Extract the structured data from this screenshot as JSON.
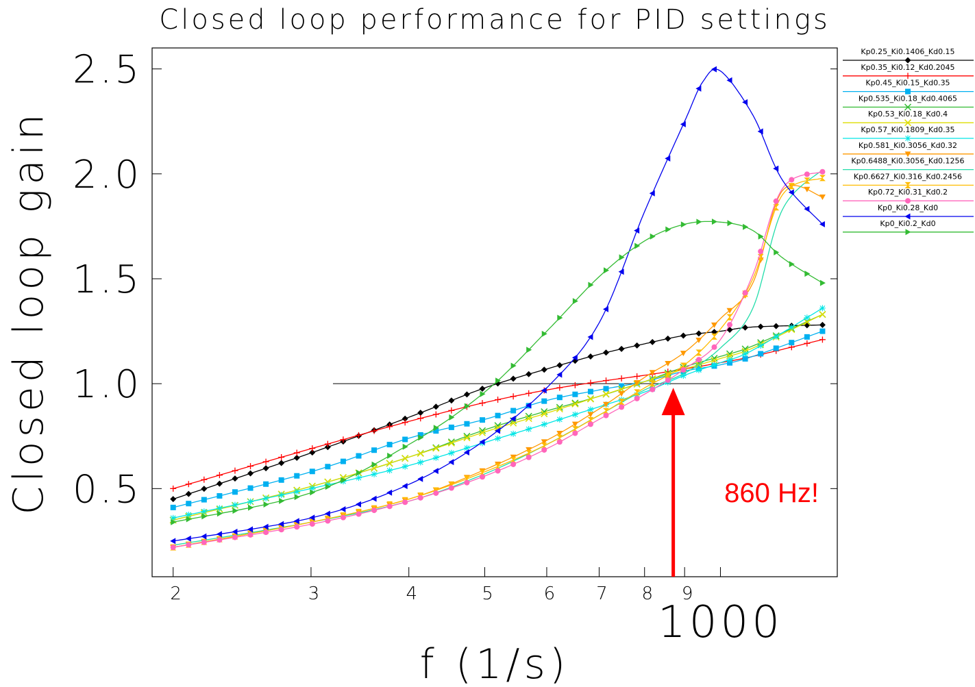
{
  "chart_data": {
    "type": "line",
    "title": "Closed loop performance for PID settings",
    "xlabel": "f (1/s)",
    "ylabel": "Closed loop gain",
    "xscale": "log",
    "xlim": [
      188,
      1410
    ],
    "ylim": [
      0.08,
      2.6
    ],
    "x_ticks": [
      {
        "value": 200,
        "label": "2"
      },
      {
        "value": 300,
        "label": "3"
      },
      {
        "value": 400,
        "label": "4"
      },
      {
        "value": 500,
        "label": "5"
      },
      {
        "value": 600,
        "label": "6"
      },
      {
        "value": 700,
        "label": "7"
      },
      {
        "value": 800,
        "label": "8"
      },
      {
        "value": 900,
        "label": "9"
      },
      {
        "value": 1000,
        "label": "1000"
      }
    ],
    "y_ticks": [
      {
        "value": 0.5,
        "label": "0.5"
      },
      {
        "value": 1.0,
        "label": "1.0"
      },
      {
        "value": 1.5,
        "label": "1.5"
      },
      {
        "value": 2.0,
        "label": "2.0"
      },
      {
        "value": 2.5,
        "label": "2.5"
      }
    ],
    "grid": false,
    "legend_position": "right-outside",
    "reference_line": {
      "y": 1.0,
      "x_from": 320,
      "x_to": 1000,
      "color": "#000000"
    },
    "annotation": {
      "text": "860 Hz!",
      "x": 860,
      "y_tip": 1.0,
      "y_tail": 0.08,
      "color": "#ff0000"
    },
    "series": [
      {
        "name": "Kp0.25_Ki0.1406_Kd0.15",
        "color": "#000000",
        "marker": "diamond",
        "points": [
          [
            200,
            0.45
          ],
          [
            300,
            0.67
          ],
          [
            400,
            0.84
          ],
          [
            500,
            0.98
          ],
          [
            600,
            1.07
          ],
          [
            700,
            1.14
          ],
          [
            800,
            1.19
          ],
          [
            900,
            1.23
          ],
          [
            1000,
            1.25
          ],
          [
            1100,
            1.27
          ],
          [
            1350,
            1.28
          ]
        ]
      },
      {
        "name": "Kp0.35_Ki0.12_Kd0.2045",
        "color": "#ff0000",
        "marker": "plus",
        "points": [
          [
            200,
            0.5
          ],
          [
            300,
            0.69
          ],
          [
            400,
            0.82
          ],
          [
            500,
            0.91
          ],
          [
            600,
            0.97
          ],
          [
            700,
            1.01
          ],
          [
            800,
            1.04
          ],
          [
            900,
            1.07
          ],
          [
            1000,
            1.1
          ],
          [
            1100,
            1.13
          ],
          [
            1350,
            1.21
          ]
        ]
      },
      {
        "name": "Kp0.45_Ki0.15_Kd0.35",
        "color": "#00b0f0",
        "marker": "square",
        "points": [
          [
            200,
            0.41
          ],
          [
            300,
            0.58
          ],
          [
            400,
            0.74
          ],
          [
            500,
            0.83
          ],
          [
            600,
            0.92
          ],
          [
            700,
            0.97
          ],
          [
            800,
            1.01
          ],
          [
            900,
            1.06
          ],
          [
            1000,
            1.09
          ],
          [
            1100,
            1.13
          ],
          [
            1350,
            1.25
          ]
        ]
      },
      {
        "name": "Kp0.535_Ki0.18_Kd0.4065",
        "color": "#33bb33",
        "marker": "x",
        "points": [
          [
            200,
            0.35
          ],
          [
            300,
            0.51
          ],
          [
            400,
            0.65
          ],
          [
            500,
            0.78
          ],
          [
            600,
            0.87
          ],
          [
            700,
            0.94
          ],
          [
            800,
            1.01
          ],
          [
            900,
            1.08
          ],
          [
            1000,
            1.13
          ],
          [
            1100,
            1.18
          ],
          [
            1350,
            1.33
          ]
        ]
      },
      {
        "name": "Kp0.53_Ki0.18_Kd0.4",
        "color": "#dddd00",
        "marker": "x",
        "points": [
          [
            200,
            0.35
          ],
          [
            300,
            0.51
          ],
          [
            400,
            0.65
          ],
          [
            500,
            0.77
          ],
          [
            600,
            0.86
          ],
          [
            700,
            0.94
          ],
          [
            800,
            1.01
          ],
          [
            900,
            1.07
          ],
          [
            1000,
            1.12
          ],
          [
            1100,
            1.17
          ],
          [
            1350,
            1.33
          ]
        ]
      },
      {
        "name": "Kp0.57_Ki0.1809_Kd0.35",
        "color": "#00e5e5",
        "marker": "star",
        "points": [
          [
            200,
            0.36
          ],
          [
            300,
            0.5
          ],
          [
            400,
            0.61
          ],
          [
            500,
            0.72
          ],
          [
            600,
            0.81
          ],
          [
            700,
            0.89
          ],
          [
            800,
            0.96
          ],
          [
            900,
            1.04
          ],
          [
            1000,
            1.1
          ],
          [
            1100,
            1.16
          ],
          [
            1350,
            1.36
          ]
        ]
      },
      {
        "name": "Kp0.581_Ki0.3056_Kd0.32",
        "color": "#ff9900",
        "marker": "triangle-down",
        "points": [
          [
            200,
            0.22
          ],
          [
            300,
            0.34
          ],
          [
            400,
            0.45
          ],
          [
            500,
            0.59
          ],
          [
            600,
            0.73
          ],
          [
            700,
            0.88
          ],
          [
            800,
            1.03
          ],
          [
            900,
            1.15
          ],
          [
            1000,
            1.31
          ],
          [
            1100,
            1.48
          ],
          [
            1200,
            1.92
          ],
          [
            1350,
            1.89
          ]
        ]
      },
      {
        "name": "Kp0.6488_Ki0.3056_Kd0.1256",
        "color": "#22ddaa",
        "marker": "bowtie",
        "points": [
          [
            200,
            0.23
          ],
          [
            300,
            0.34
          ],
          [
            400,
            0.44
          ],
          [
            500,
            0.57
          ],
          [
            600,
            0.71
          ],
          [
            700,
            0.85
          ],
          [
            800,
            0.97
          ],
          [
            900,
            1.05
          ],
          [
            1000,
            1.17
          ],
          [
            1100,
            1.36
          ],
          [
            1200,
            1.83
          ],
          [
            1350,
            2.02
          ]
        ]
      },
      {
        "name": "Kp0.6627_Ki0.316_Kd0.2456",
        "color": "#ffbb00",
        "marker": "hourglass",
        "points": [
          [
            200,
            0.22
          ],
          [
            300,
            0.34
          ],
          [
            400,
            0.45
          ],
          [
            500,
            0.58
          ],
          [
            600,
            0.71
          ],
          [
            700,
            0.85
          ],
          [
            800,
            0.98
          ],
          [
            900,
            1.09
          ],
          [
            1000,
            1.26
          ],
          [
            1100,
            1.5
          ],
          [
            1200,
            1.9
          ],
          [
            1350,
            1.98
          ]
        ]
      },
      {
        "name": "Kp0.72_Ki0.31_Kd0.2",
        "color": "#ff66bb",
        "marker": "circle",
        "points": [
          [
            200,
            0.22
          ],
          [
            300,
            0.33
          ],
          [
            400,
            0.44
          ],
          [
            500,
            0.56
          ],
          [
            600,
            0.69
          ],
          [
            700,
            0.83
          ],
          [
            800,
            0.95
          ],
          [
            900,
            1.07
          ],
          [
            1000,
            1.21
          ],
          [
            1100,
            1.52
          ],
          [
            1200,
            1.93
          ],
          [
            1350,
            2.01
          ]
        ]
      },
      {
        "name": "Kp0_Ki0.28_Kd0",
        "color": "#0000ee",
        "marker": "triangle-left",
        "points": [
          [
            200,
            0.25
          ],
          [
            300,
            0.36
          ],
          [
            400,
            0.52
          ],
          [
            500,
            0.73
          ],
          [
            600,
            0.98
          ],
          [
            700,
            1.29
          ],
          [
            800,
            1.82
          ],
          [
            900,
            2.25
          ],
          [
            950,
            2.44
          ],
          [
            1000,
            2.49
          ],
          [
            1100,
            2.28
          ],
          [
            1200,
            1.97
          ],
          [
            1350,
            1.76
          ]
        ]
      },
      {
        "name": "Kp0_Ki0.2_Kd0",
        "color": "#33bb33",
        "marker": "triangle-right",
        "points": [
          [
            200,
            0.34
          ],
          [
            300,
            0.48
          ],
          [
            400,
            0.71
          ],
          [
            500,
            0.96
          ],
          [
            600,
            1.25
          ],
          [
            700,
            1.51
          ],
          [
            800,
            1.68
          ],
          [
            900,
            1.76
          ],
          [
            1000,
            1.77
          ],
          [
            1100,
            1.73
          ],
          [
            1200,
            1.6
          ],
          [
            1350,
            1.48
          ]
        ]
      }
    ]
  }
}
